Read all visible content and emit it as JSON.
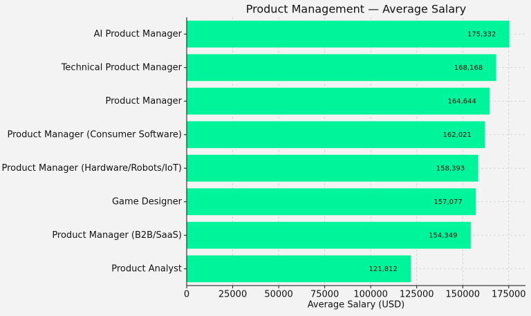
{
  "chart_data": {
    "type": "barh",
    "title": "Product Management — Average Salary",
    "xlabel": "Average Salary (USD)",
    "categories": [
      "AI Product Manager",
      "Technical Product Manager",
      "Product Manager",
      "Product Manager (Consumer Software)",
      "Product Manager (Hardware/Robots/IoT)",
      "Game Designer",
      "Product Manager (B2B/SaaS)",
      "Product Analyst"
    ],
    "values": [
      175332,
      168168,
      164644,
      162021,
      158393,
      157077,
      154349,
      121812
    ],
    "value_labels": [
      "175,332",
      "168,168",
      "164,644",
      "162,021",
      "158,393",
      "157,077",
      "154,349",
      "121,812"
    ],
    "color": "#00f59b",
    "xlim": [
      0,
      184099
    ],
    "xticks": [
      0,
      25000,
      50000,
      75000,
      100000,
      125000,
      150000,
      175000
    ],
    "grid": true
  }
}
